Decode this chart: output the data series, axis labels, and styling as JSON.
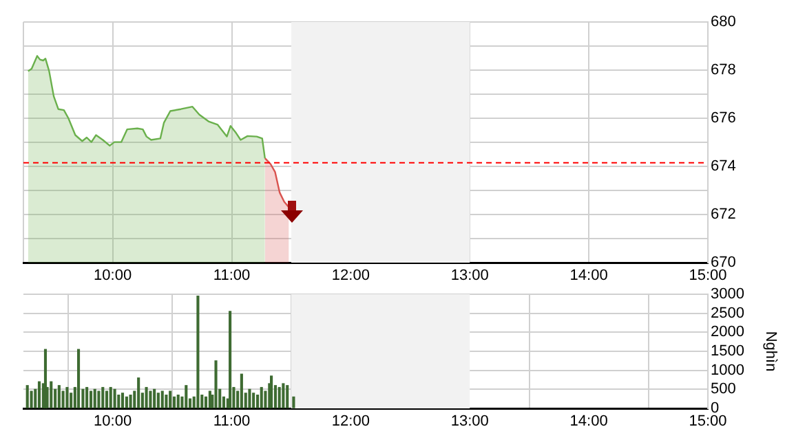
{
  "chart_data": [
    {
      "type": "area",
      "xlim": [
        9.25,
        15
      ],
      "xticks": [
        {
          "value": 10,
          "label": "10:00"
        },
        {
          "value": 11,
          "label": "11:00"
        },
        {
          "value": 12,
          "label": "12:00"
        },
        {
          "value": 13,
          "label": "13:00"
        },
        {
          "value": 14,
          "label": "14:00"
        },
        {
          "value": 15,
          "label": "15:00"
        }
      ],
      "ylim": [
        670,
        680
      ],
      "yticks": [
        670,
        672,
        674,
        676,
        678,
        680
      ],
      "grid": true,
      "legend": false,
      "marker": "none",
      "series": [
        {
          "color": "#6ab04c",
          "x": [
            9.289,
            9.319,
            9.366,
            9.389,
            9.416,
            9.435,
            9.466,
            9.505,
            9.543,
            9.59,
            9.628,
            9.686,
            9.744,
            9.782,
            9.821,
            9.86,
            9.917,
            9.975,
            10.014,
            10.072,
            10.122,
            10.207,
            10.253,
            10.284,
            10.323,
            10.4,
            10.43,
            10.484,
            10.573,
            10.67,
            10.728,
            10.805,
            10.882,
            10.959,
            10.99,
            11.036,
            11.075,
            11.133,
            11.21,
            11.256,
            11.279
          ],
          "values": [
            677.96,
            678.06,
            678.59,
            678.44,
            678.4,
            678.48,
            677.96,
            676.91,
            676.38,
            676.34,
            676.0,
            675.3,
            675.05,
            675.2,
            675.01,
            675.3,
            675.1,
            674.86,
            675.01,
            675.01,
            675.54,
            675.58,
            675.54,
            675.24,
            675.1,
            675.16,
            675.81,
            676.3,
            676.38,
            676.48,
            676.15,
            675.87,
            675.73,
            675.24,
            675.68,
            675.39,
            675.1,
            675.26,
            675.24,
            675.16,
            674.34
          ]
        },
        {
          "color": "#d9534f",
          "x": [
            11.279,
            11.326,
            11.364,
            11.403,
            11.441,
            11.48
          ],
          "values": [
            674.34,
            674.1,
            673.77,
            672.91,
            672.53,
            672.3
          ]
        }
      ],
      "ref_lines": [
        {
          "axis": "y",
          "value": 674.15,
          "color": "#ff0000",
          "line_style": "dashed"
        }
      ],
      "bands": [
        {
          "axis": "x",
          "from": 11.5,
          "to": 13,
          "color": "#f2f2f2"
        }
      ]
    },
    {
      "type": "bar",
      "ylabel": "Nghìn",
      "xlim": [
        9.25,
        15
      ],
      "xticks": [
        {
          "value": 10,
          "label": "10:00"
        },
        {
          "value": 11,
          "label": "11:00"
        },
        {
          "value": 12,
          "label": "12:00"
        },
        {
          "value": 13,
          "label": "13:00"
        },
        {
          "value": 14,
          "label": "14:00"
        },
        {
          "value": 15,
          "label": "15:00"
        }
      ],
      "ylim": [
        0,
        3000
      ],
      "yticks": [
        0,
        500,
        1000,
        1500,
        2000,
        2500,
        3000
      ],
      "grid": true,
      "legend": false,
      "color": "#3e6b32",
      "x": [
        9.283,
        9.317,
        9.35,
        9.383,
        9.417,
        9.435,
        9.45,
        9.483,
        9.517,
        9.55,
        9.583,
        9.617,
        9.65,
        9.683,
        9.713,
        9.75,
        9.783,
        9.817,
        9.85,
        9.883,
        9.917,
        9.95,
        9.983,
        10.017,
        10.05,
        10.083,
        10.117,
        10.15,
        10.183,
        10.217,
        10.25,
        10.283,
        10.317,
        10.35,
        10.383,
        10.417,
        10.45,
        10.483,
        10.517,
        10.55,
        10.583,
        10.617,
        10.65,
        10.683,
        10.716,
        10.75,
        10.783,
        10.817,
        10.837,
        10.867,
        10.9,
        10.933,
        10.967,
        10.986,
        11.017,
        11.05,
        11.083,
        11.117,
        11.15,
        11.183,
        11.217,
        11.25,
        11.283,
        11.317,
        11.333,
        11.367,
        11.4,
        11.433,
        11.467,
        11.52
      ],
      "values": [
        600,
        450,
        500,
        700,
        650,
        1550,
        550,
        700,
        500,
        600,
        450,
        550,
        400,
        550,
        1550,
        500,
        550,
        450,
        500,
        450,
        550,
        450,
        550,
        500,
        350,
        400,
        300,
        350,
        450,
        800,
        400,
        550,
        450,
        500,
        400,
        450,
        350,
        450,
        300,
        350,
        300,
        600,
        250,
        300,
        2950,
        350,
        300,
        450,
        350,
        1250,
        500,
        300,
        250,
        2550,
        550,
        450,
        900,
        400,
        500,
        400,
        350,
        550,
        450,
        650,
        850,
        600,
        550,
        650,
        600,
        300
      ],
      "bands": [
        {
          "axis": "x",
          "from": 11.5,
          "to": 13,
          "color": "#f2f2f2"
        }
      ]
    }
  ]
}
